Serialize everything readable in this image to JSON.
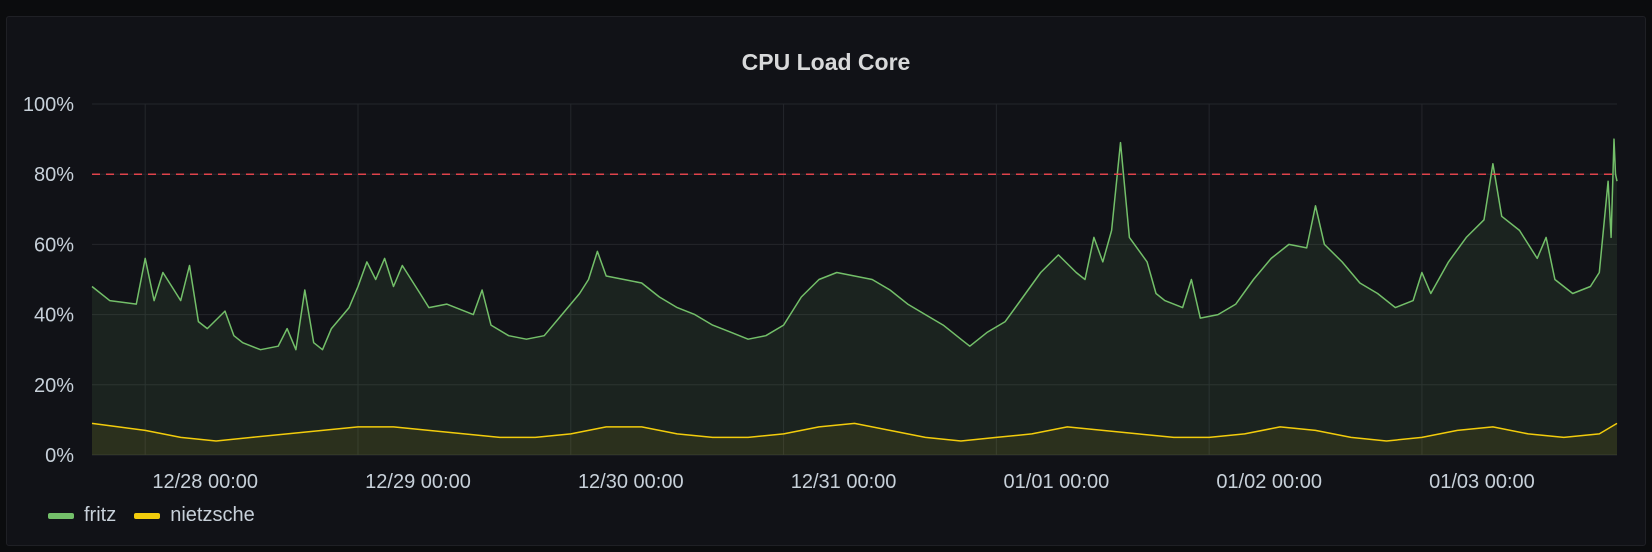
{
  "panel": {
    "title": "CPU Load Core"
  },
  "colors": {
    "fritz": "#73bf69",
    "nietzsche": "#f2cc0c",
    "threshold": "#e0434b"
  },
  "chart_data": {
    "type": "line",
    "title": "CPU Load Core",
    "xlabel": "",
    "ylabel": "",
    "y_unit": "%",
    "ylim": [
      0,
      100
    ],
    "y_ticks": [
      "0%",
      "20%",
      "40%",
      "60%",
      "80%",
      "100%"
    ],
    "y_tick_values": [
      0,
      20,
      40,
      60,
      80,
      100
    ],
    "x_range": [
      "12/27 18:00",
      "01/03 22:00"
    ],
    "x_ticks": [
      {
        "label": "12/28 00:00",
        "t": "12/28 00:00"
      },
      {
        "label": "12/29 00:00",
        "t": "12/29 00:00"
      },
      {
        "label": "12/30 00:00",
        "t": "12/30 00:00"
      },
      {
        "label": "12/31 00:00",
        "t": "12/31 00:00"
      },
      {
        "label": "01/01 00:00",
        "t": "01/01 00:00"
      },
      {
        "label": "01/02 00:00",
        "t": "01/02 00:00"
      },
      {
        "label": "01/03 00:00",
        "t": "01/03 00:00"
      }
    ],
    "grid": true,
    "threshold": 80,
    "legend": "bottom-left",
    "series": [
      {
        "name": "fritz",
        "points": [
          [
            "12/27 18:00",
            48
          ],
          [
            "12/27 20:00",
            44
          ],
          [
            "12/27 23:00",
            43
          ],
          [
            "12/28 00:00",
            56
          ],
          [
            "12/28 01:00",
            44
          ],
          [
            "12/28 02:00",
            52
          ],
          [
            "12/28 03:00",
            48
          ],
          [
            "12/28 04:00",
            44
          ],
          [
            "12/28 05:00",
            54
          ],
          [
            "12/28 06:00",
            38
          ],
          [
            "12/28 07:00",
            36
          ],
          [
            "12/28 09:00",
            41
          ],
          [
            "12/28 10:00",
            34
          ],
          [
            "12/28 11:00",
            32
          ],
          [
            "12/28 13:00",
            30
          ],
          [
            "12/28 15:00",
            31
          ],
          [
            "12/28 16:00",
            36
          ],
          [
            "12/28 17:00",
            30
          ],
          [
            "12/28 18:00",
            47
          ],
          [
            "12/28 19:00",
            32
          ],
          [
            "12/28 20:00",
            30
          ],
          [
            "12/28 21:00",
            36
          ],
          [
            "12/28 23:00",
            42
          ],
          [
            "12/29 00:00",
            48
          ],
          [
            "12/29 01:00",
            55
          ],
          [
            "12/29 02:00",
            50
          ],
          [
            "12/29 03:00",
            56
          ],
          [
            "12/29 04:00",
            48
          ],
          [
            "12/29 05:00",
            54
          ],
          [
            "12/29 07:00",
            46
          ],
          [
            "12/29 08:00",
            42
          ],
          [
            "12/29 10:00",
            43
          ],
          [
            "12/29 12:00",
            41
          ],
          [
            "12/29 13:00",
            40
          ],
          [
            "12/29 14:00",
            47
          ],
          [
            "12/29 15:00",
            37
          ],
          [
            "12/29 17:00",
            34
          ],
          [
            "12/29 19:00",
            33
          ],
          [
            "12/29 21:00",
            34
          ],
          [
            "12/29 23:00",
            40
          ],
          [
            "12/30 01:00",
            46
          ],
          [
            "12/30 02:00",
            50
          ],
          [
            "12/30 03:00",
            58
          ],
          [
            "12/30 04:00",
            51
          ],
          [
            "12/30 06:00",
            50
          ],
          [
            "12/30 08:00",
            49
          ],
          [
            "12/30 10:00",
            45
          ],
          [
            "12/30 12:00",
            42
          ],
          [
            "12/30 14:00",
            40
          ],
          [
            "12/30 16:00",
            37
          ],
          [
            "12/30 18:00",
            35
          ],
          [
            "12/30 20:00",
            33
          ],
          [
            "12/30 22:00",
            34
          ],
          [
            "12/31 00:00",
            37
          ],
          [
            "12/31 02:00",
            45
          ],
          [
            "12/31 04:00",
            50
          ],
          [
            "12/31 06:00",
            52
          ],
          [
            "12/31 08:00",
            51
          ],
          [
            "12/31 10:00",
            50
          ],
          [
            "12/31 12:00",
            47
          ],
          [
            "12/31 14:00",
            43
          ],
          [
            "12/31 16:00",
            40
          ],
          [
            "12/31 18:00",
            37
          ],
          [
            "12/31 20:00",
            33
          ],
          [
            "12/31 21:00",
            31
          ],
          [
            "12/31 23:00",
            35
          ],
          [
            "01/01 01:00",
            38
          ],
          [
            "01/01 03:00",
            45
          ],
          [
            "01/01 05:00",
            52
          ],
          [
            "01/01 07:00",
            57
          ],
          [
            "01/01 09:00",
            52
          ],
          [
            "01/01 10:00",
            50
          ],
          [
            "01/01 11:00",
            62
          ],
          [
            "01/01 12:00",
            55
          ],
          [
            "01/01 13:00",
            64
          ],
          [
            "01/01 14:00",
            89
          ],
          [
            "01/01 15:00",
            62
          ],
          [
            "01/01 17:00",
            55
          ],
          [
            "01/01 18:00",
            46
          ],
          [
            "01/01 19:00",
            44
          ],
          [
            "01/01 21:00",
            42
          ],
          [
            "01/01 22:00",
            50
          ],
          [
            "01/01 23:00",
            39
          ],
          [
            "01/02 01:00",
            40
          ],
          [
            "01/02 03:00",
            43
          ],
          [
            "01/02 05:00",
            50
          ],
          [
            "01/02 07:00",
            56
          ],
          [
            "01/02 09:00",
            60
          ],
          [
            "01/02 11:00",
            59
          ],
          [
            "01/02 12:00",
            71
          ],
          [
            "01/02 13:00",
            60
          ],
          [
            "01/02 15:00",
            55
          ],
          [
            "01/02 17:00",
            49
          ],
          [
            "01/02 19:00",
            46
          ],
          [
            "01/02 21:00",
            42
          ],
          [
            "01/02 23:00",
            44
          ],
          [
            "01/03 00:00",
            52
          ],
          [
            "01/03 01:00",
            46
          ],
          [
            "01/03 03:00",
            55
          ],
          [
            "01/03 05:00",
            62
          ],
          [
            "01/03 07:00",
            67
          ],
          [
            "01/03 08:00",
            83
          ],
          [
            "01/03 09:00",
            68
          ],
          [
            "01/03 11:00",
            64
          ],
          [
            "01/03 13:00",
            56
          ],
          [
            "01/03 14:00",
            62
          ],
          [
            "01/03 15:00",
            50
          ],
          [
            "01/03 17:00",
            46
          ],
          [
            "01/03 19:00",
            48
          ],
          [
            "01/03 20:00",
            52
          ],
          [
            "01/03 21:00",
            78
          ],
          [
            "01/03 21:20",
            62
          ],
          [
            "01/03 21:40",
            90
          ],
          [
            "01/03 21:50",
            80
          ],
          [
            "01/03 22:00",
            78
          ]
        ]
      },
      {
        "name": "nietzsche",
        "points": [
          [
            "12/27 18:00",
            9
          ],
          [
            "12/27 21:00",
            8
          ],
          [
            "12/28 00:00",
            7
          ],
          [
            "12/28 04:00",
            5
          ],
          [
            "12/28 08:00",
            4
          ],
          [
            "12/28 12:00",
            5
          ],
          [
            "12/28 16:00",
            6
          ],
          [
            "12/28 20:00",
            7
          ],
          [
            "12/29 00:00",
            8
          ],
          [
            "12/29 04:00",
            8
          ],
          [
            "12/29 08:00",
            7
          ],
          [
            "12/29 12:00",
            6
          ],
          [
            "12/29 16:00",
            5
          ],
          [
            "12/29 20:00",
            5
          ],
          [
            "12/30 00:00",
            6
          ],
          [
            "12/30 04:00",
            8
          ],
          [
            "12/30 08:00",
            8
          ],
          [
            "12/30 12:00",
            6
          ],
          [
            "12/30 16:00",
            5
          ],
          [
            "12/30 20:00",
            5
          ],
          [
            "12/31 00:00",
            6
          ],
          [
            "12/31 04:00",
            8
          ],
          [
            "12/31 08:00",
            9
          ],
          [
            "12/31 12:00",
            7
          ],
          [
            "12/31 16:00",
            5
          ],
          [
            "12/31 20:00",
            4
          ],
          [
            "01/01 00:00",
            5
          ],
          [
            "01/01 04:00",
            6
          ],
          [
            "01/01 08:00",
            8
          ],
          [
            "01/01 12:00",
            7
          ],
          [
            "01/01 16:00",
            6
          ],
          [
            "01/01 20:00",
            5
          ],
          [
            "01/02 00:00",
            5
          ],
          [
            "01/02 04:00",
            6
          ],
          [
            "01/02 08:00",
            8
          ],
          [
            "01/02 12:00",
            7
          ],
          [
            "01/02 16:00",
            5
          ],
          [
            "01/02 20:00",
            4
          ],
          [
            "01/03 00:00",
            5
          ],
          [
            "01/03 04:00",
            7
          ],
          [
            "01/03 08:00",
            8
          ],
          [
            "01/03 12:00",
            6
          ],
          [
            "01/03 16:00",
            5
          ],
          [
            "01/03 20:00",
            6
          ],
          [
            "01/03 22:00",
            9
          ]
        ]
      }
    ]
  }
}
